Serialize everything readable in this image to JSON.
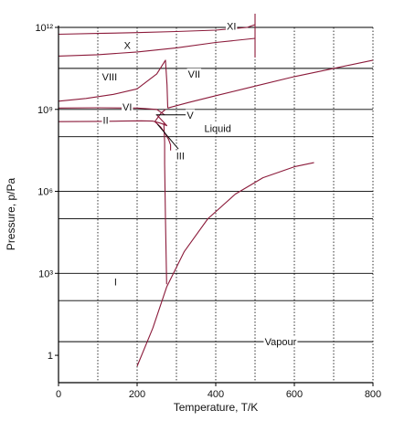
{
  "chart_data": {
    "type": "line",
    "title": "",
    "xlabel": "Temperature, T/K",
    "ylabel": "Pressure, p/Pa",
    "x_axis": {
      "range": [
        0,
        800
      ],
      "ticks": [
        0,
        200,
        400,
        600,
        800
      ],
      "tick_labels": [
        "0",
        "200",
        "400",
        "600",
        "800"
      ]
    },
    "y_axis": {
      "scale": "log",
      "range_log10": [
        -1,
        12
      ],
      "tick_labels": [
        {
          "log10": 0,
          "label": "1"
        },
        {
          "log10": 3,
          "label": "10³"
        },
        {
          "log10": 6,
          "label": "10⁶"
        },
        {
          "log10": 9,
          "label": "10⁹"
        },
        {
          "log10": 12,
          "label": "10¹²"
        }
      ]
    },
    "grid": true,
    "grid_x_values": [
      100,
      200,
      300,
      400,
      500,
      600,
      700,
      800
    ],
    "grid_y_log10": [
      0.5,
      2,
      3,
      5,
      6,
      8,
      9,
      10.5,
      12
    ],
    "boundary_color": "#8b1a3a",
    "grid_color": "#000000",
    "series": [
      {
        "x": [
          200,
          240,
          275,
          320,
          380,
          450,
          520,
          600,
          650
        ],
        "y_log10": [
          -0.4,
          1.0,
          2.5,
          3.8,
          5.0,
          5.9,
          6.5,
          6.9,
          7.05
        ]
      },
      {
        "x": [
          275,
          272,
          270,
          270,
          268
        ],
        "y_log10": [
          2.6,
          5.0,
          7.0,
          7.8,
          8.5
        ]
      },
      {
        "x": [
          245,
          258,
          268,
          276
        ],
        "y_log10": [
          8.55,
          8.5,
          8.45,
          8.4
        ]
      },
      {
        "x": [
          245,
          260,
          270,
          280,
          285,
          285
        ],
        "y_log10": [
          8.55,
          8.35,
          8.15,
          7.9,
          7.7,
          7.5
        ]
      },
      {
        "x": [
          0,
          100,
          160,
          210,
          240,
          245
        ],
        "y_log10": [
          8.55,
          8.56,
          8.57,
          8.58,
          8.57,
          8.55
        ]
      },
      {
        "x": [
          0,
          100,
          200,
          250,
          270
        ],
        "y_log10": [
          9.05,
          9.06,
          9.05,
          9.0,
          8.8
        ]
      },
      {
        "x": [
          245,
          260,
          272
        ],
        "y_log10": [
          8.55,
          8.85,
          9.0
        ]
      },
      {
        "x": [
          250,
          276
        ],
        "y_log10": [
          8.8,
          8.4
        ]
      },
      {
        "x": [
          278,
          330,
          400,
          500,
          600,
          700,
          800
        ],
        "y_log10": [
          9.05,
          9.25,
          9.5,
          9.85,
          10.2,
          10.5,
          10.8
        ]
      },
      {
        "x": [
          0,
          70,
          140,
          200,
          250,
          272,
          276,
          278
        ],
        "y_log10": [
          9.3,
          9.4,
          9.55,
          9.75,
          10.3,
          10.8,
          9.9,
          9.05
        ]
      },
      {
        "x": [
          0,
          100,
          200,
          300,
          400,
          500
        ],
        "y_log10": [
          10.95,
          11.0,
          11.1,
          11.25,
          11.45,
          11.6
        ]
      },
      {
        "x": [
          0,
          100,
          200,
          300,
          400,
          480,
          500
        ],
        "y_log10": [
          11.75,
          11.78,
          11.81,
          11.85,
          11.9,
          12.0,
          12.1
        ]
      },
      {
        "x": [
          500,
          500
        ],
        "y_log10": [
          10.9,
          12.5
        ]
      }
    ],
    "annotations": [
      {
        "text": "X",
        "x": 175,
        "y_log10": 11.35
      },
      {
        "text": "XI",
        "x": 440,
        "y_log10": 12.05
      },
      {
        "text": "VIII",
        "x": 130,
        "y_log10": 10.2
      },
      {
        "text": "VII",
        "x": 345,
        "y_log10": 10.3
      },
      {
        "text": "VI",
        "x": 175,
        "y_log10": 9.1
      },
      {
        "text": "II",
        "x": 120,
        "y_log10": 8.6
      },
      {
        "text": "V",
        "x": 335,
        "y_log10": 8.8
      },
      {
        "text": "Liquid",
        "x": 405,
        "y_log10": 8.3
      },
      {
        "text": "III",
        "x": 310,
        "y_log10": 7.3
      },
      {
        "text": "I",
        "x": 145,
        "y_log10": 2.7
      },
      {
        "text": "Vapour",
        "x": 565,
        "y_log10": 0.5
      }
    ]
  }
}
